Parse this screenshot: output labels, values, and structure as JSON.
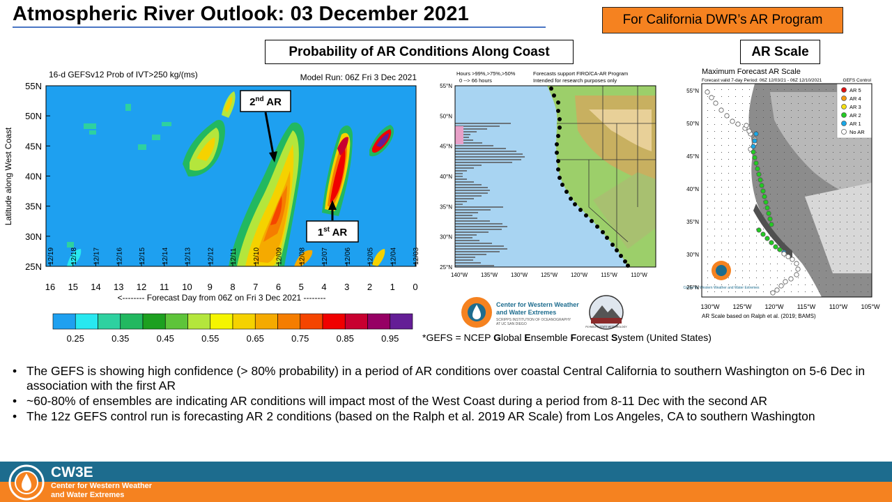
{
  "slide": {
    "title": "Atmospheric River Outlook: 03 December 2021",
    "badge": "For California DWR’s AR Program",
    "label_probability": "Probability  of AR Conditions Along Coast",
    "label_scale": "AR Scale"
  },
  "left_plot": {
    "title_left": "16-d GEFSv12 Prob of IVT>250 kg/(ms)",
    "title_right": "Model Run: 06Z Fri 3 Dec 2021",
    "ylabel": "Latitude along West Coast",
    "xlabel": "<-------- Forecast Day from 06Z on Fri 3 Dec 2021 --------",
    "y_ticks": [
      "55N",
      "50N",
      "45N",
      "40N",
      "35N",
      "30N",
      "25N"
    ],
    "x_ticks": [
      "16",
      "15",
      "14",
      "13",
      "12",
      "11",
      "10",
      "9",
      "8",
      "7",
      "6",
      "5",
      "4",
      "3",
      "2",
      "1",
      "0"
    ],
    "date_labels": [
      "12/19",
      "12/18",
      "12/17",
      "12/16",
      "12/15",
      "12/14",
      "12/13",
      "12/12",
      "12/11",
      "12/10",
      "12/09",
      "12/08",
      "12/07",
      "12/06",
      "12/05",
      "12/04",
      "12/03"
    ],
    "annotation_second": "2",
    "annotation_second_sup": "nd",
    "annotation_second_suffix": " AR",
    "annotation_first": "1",
    "annotation_first_sup": "st",
    "annotation_first_suffix": " AR"
  },
  "colorbar": {
    "colors": [
      "#1ea0f0",
      "#28e8f0",
      "#2ed1a0",
      "#22b860",
      "#1da020",
      "#5ec43a",
      "#b4e63c",
      "#f5f500",
      "#f5d200",
      "#f5aa00",
      "#f57d00",
      "#f54500",
      "#f00000",
      "#c80030",
      "#960064",
      "#641e96"
    ],
    "labels": [
      "0.25",
      "0.35",
      "0.45",
      "0.55",
      "0.65",
      "0.75",
      "0.85",
      "0.95"
    ]
  },
  "middle_map": {
    "header_left_1": "Hours >99%,>75%,>50%",
    "header_left_2": "0 --> 66 hours",
    "header_right_1": "Forecasts support FIRO/CA-AR Program",
    "header_right_2": "Intended for research purposes only",
    "lat_ticks": [
      "55°N",
      "50°N",
      "45°N",
      "40°N",
      "35°N",
      "30°N",
      "25°N"
    ],
    "lon_ticks": [
      "140°W",
      "135°W",
      "130°W",
      "125°W",
      "120°W",
      "115°W",
      "110°W"
    ]
  },
  "right_map": {
    "title": "Maximum Forecast AR Scale",
    "subtitle": "Forecast valid 7-day Period: 06Z 12/03/21 - 06Z 12/10/2021",
    "legend_title": "GEFS Control",
    "legend": [
      {
        "label": "AR 5",
        "color": "#e01010"
      },
      {
        "label": "AR 4",
        "color": "#f59a10"
      },
      {
        "label": "AR 3",
        "color": "#f5e010"
      },
      {
        "label": "AR 2",
        "color": "#22cc22"
      },
      {
        "label": "AR 1",
        "color": "#18a8e8"
      },
      {
        "label": "No AR",
        "color": "#ffffff"
      }
    ],
    "lat_ticks": [
      "55°N",
      "50°N",
      "45°N",
      "40°N",
      "35°N",
      "30°N",
      "25°N"
    ],
    "lon_ticks": [
      "130°W",
      "125°W",
      "120°W",
      "115°W",
      "110°W",
      "105°W"
    ],
    "footnote": "AR Scale based on Ralph et al. (2019; BAMS)",
    "logo_text": "Center for Western Weather and Water Extremes"
  },
  "logos": {
    "cw3e_line1": "Center for Western Weather",
    "cw3e_line2": "and Water Extremes",
    "cw3e_line3": "SCRIPPS INSTITUTION OF OCEANOGRAPHY",
    "cw3e_line4": "AT UC SAN DIEGO",
    "psu_text": "PLYMOUTH STATE METEOROLOGY"
  },
  "gefs_note": {
    "prefix": "*GEFS = NCEP ",
    "g": "G",
    "lobal": "lobal ",
    "e": "E",
    "nsemble": "nsemble ",
    "f": "F",
    "orecast": "orecast ",
    "s": "S",
    "ystem": "ystem (United States)"
  },
  "bullets": [
    {
      "dot": "•",
      "text": "The GEFS is showing high confidence  (> 80% probability) in a period of AR conditions over coastal Central California  to southern Washington  on 5-6 Dec in association with the first AR"
    },
    {
      "dot": "•",
      "text": "  ~60-80% of ensembles are indicating AR conditions will impact most of the West Coast during a period from 8-11 Dec with the second AR"
    },
    {
      "dot": "•",
      "text": "The 12z GEFS control run is forecasting AR 2 conditions  (based on the Ralph et al. 2019 AR Scale) from Los Angeles, CA to southern Washington"
    }
  ],
  "footer": {
    "brand": "CW3E",
    "line1": "Center for Western Weather",
    "line2": "and Water Extremes"
  }
}
